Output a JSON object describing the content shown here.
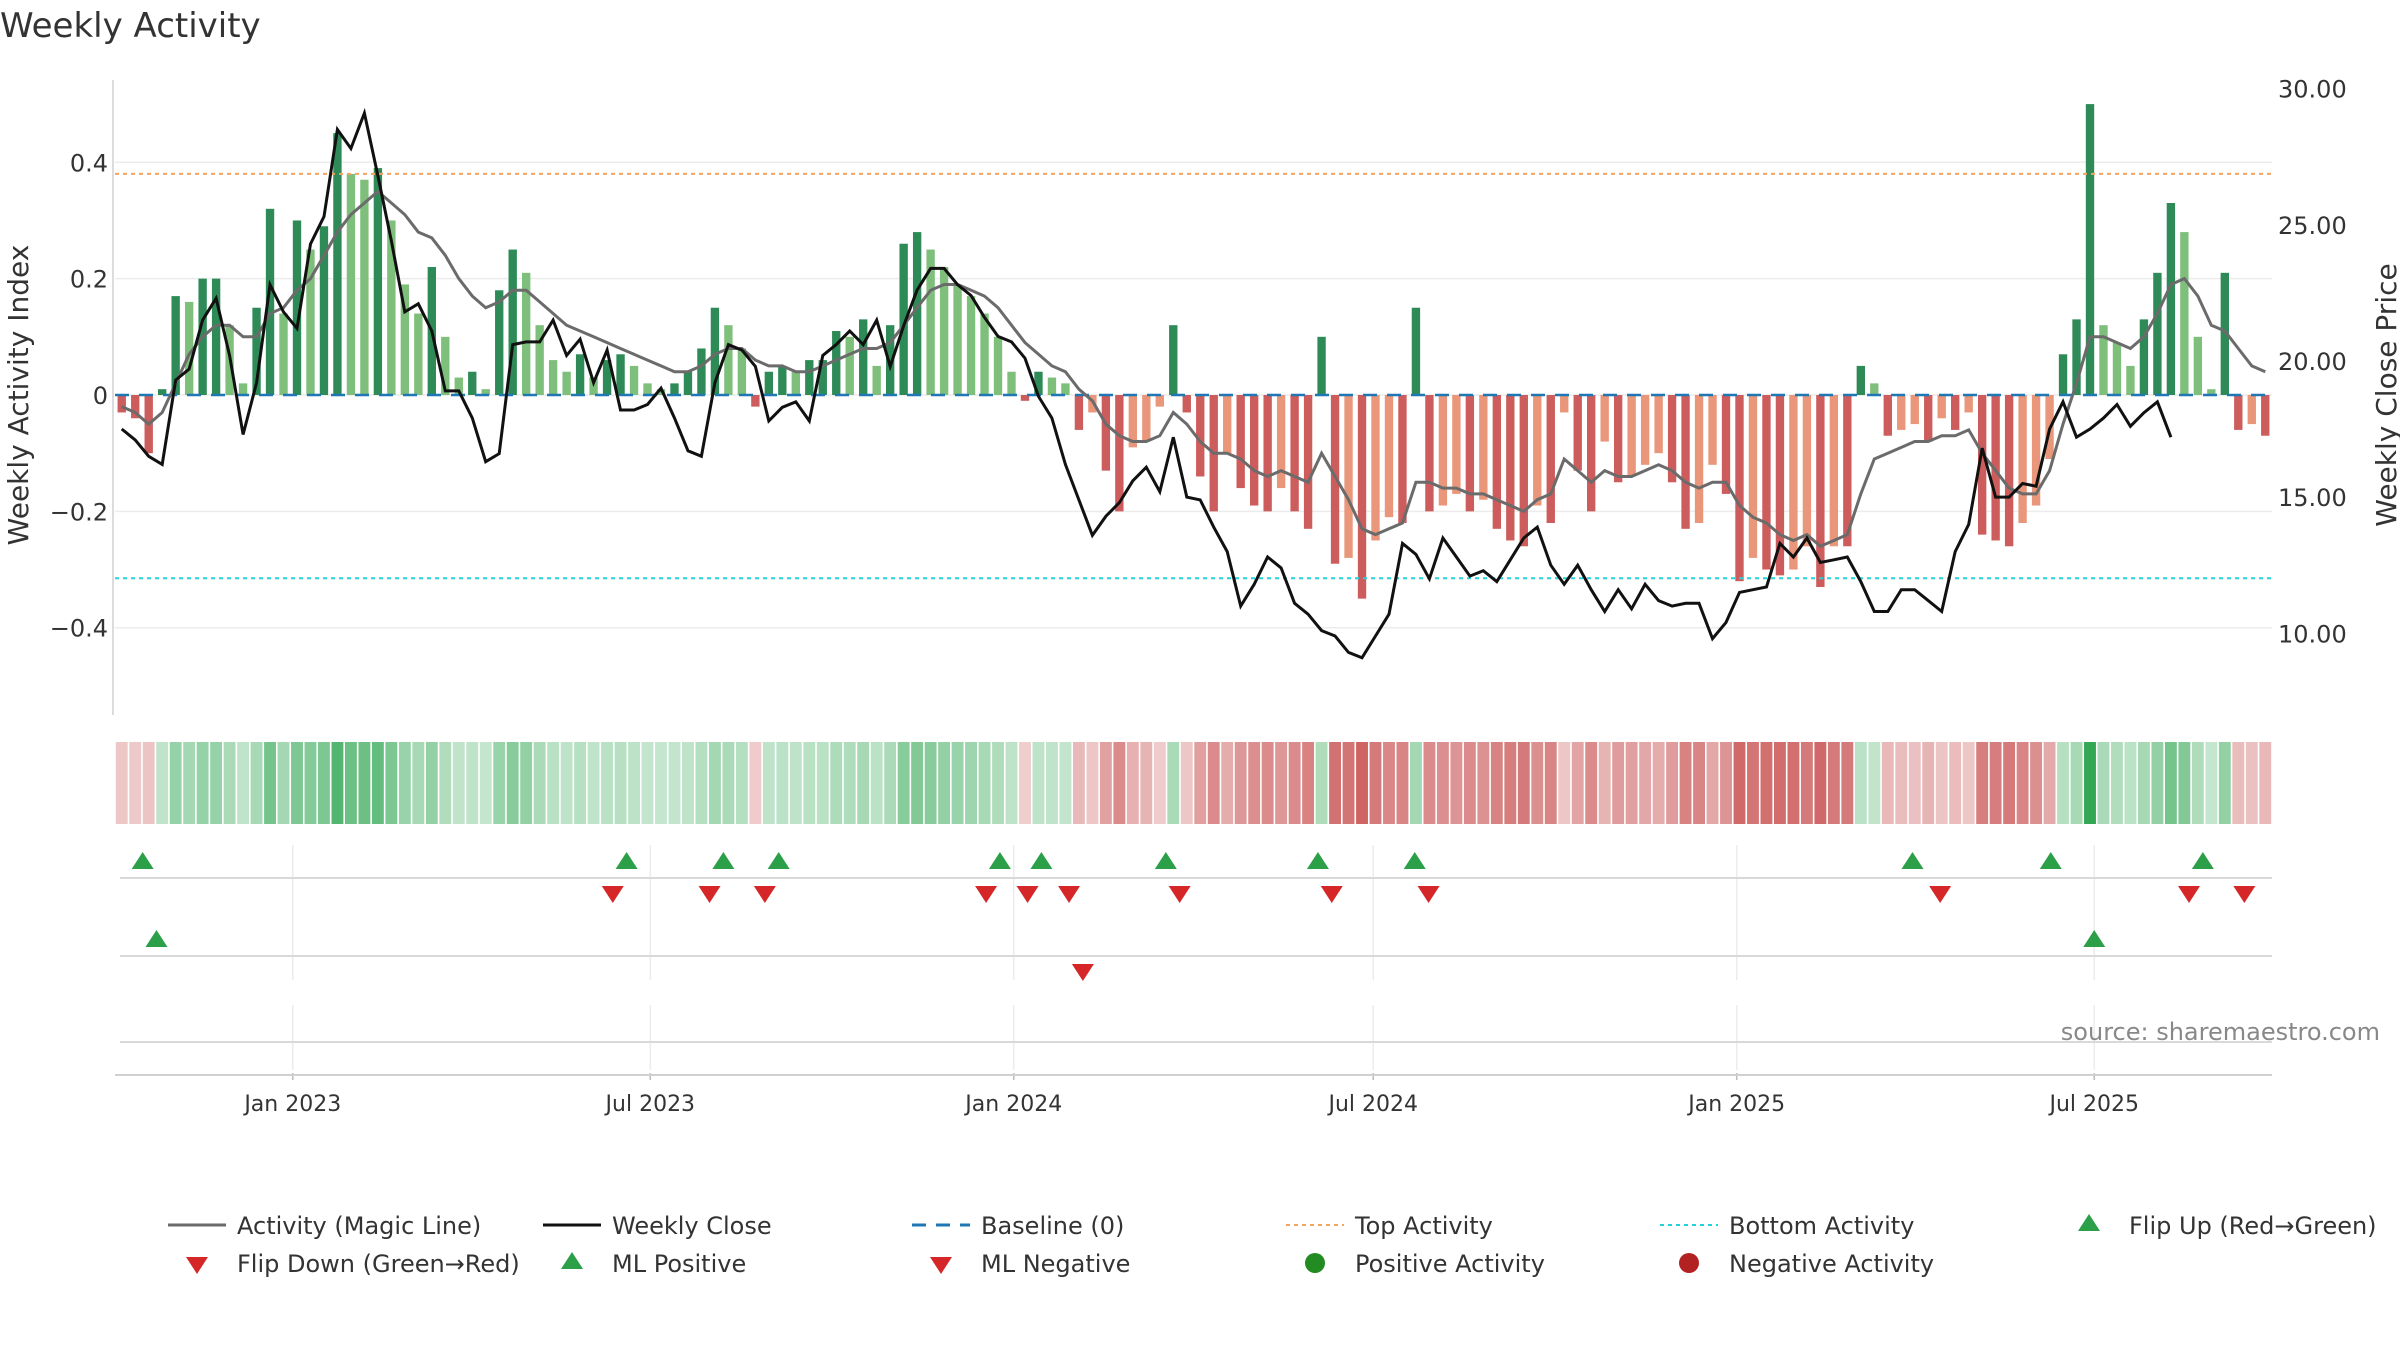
{
  "chart_data": {
    "type": "bar",
    "title": "Weekly Activity",
    "ylabel_left": "Weekly Activity Index",
    "ylabel_right": "Weekly Close Price",
    "source": "source: sharemaestro.com",
    "y_left_range": [
      -0.55,
      0.55
    ],
    "y_left_ticks": [
      0.4,
      0.2,
      0,
      -0.2,
      -0.4
    ],
    "y_left_tick_labels": [
      "0.4",
      "0.2",
      "0",
      "−0.2",
      "−0.4"
    ],
    "y_right_range": [
      7,
      30.5
    ],
    "y_right_ticks": [
      30,
      25,
      20,
      15,
      10
    ],
    "y_right_tick_labels": [
      "30.00",
      "25.00",
      "20.00",
      "15.00",
      "10.00"
    ],
    "top_activity": 0.38,
    "bottom_activity": -0.315,
    "x_start": "2022-10-03",
    "x_end": "2025-09-29",
    "x_ticks": [
      {
        "date": "2023-01-01",
        "label": "Jan 2023"
      },
      {
        "date": "2023-07-01",
        "label": "Jul 2023"
      },
      {
        "date": "2024-01-01",
        "label": "Jan 2024"
      },
      {
        "date": "2024-07-01",
        "label": "Jul 2024"
      },
      {
        "date": "2025-01-01",
        "label": "Jan 2025"
      },
      {
        "date": "2025-07-01",
        "label": "Jul 2025"
      }
    ],
    "activity": [
      -0.03,
      -0.04,
      -0.1,
      0.01,
      0.17,
      0.16,
      0.2,
      0.2,
      0.12,
      0.02,
      0.15,
      0.32,
      0.14,
      0.3,
      0.25,
      0.29,
      0.45,
      0.38,
      0.37,
      0.39,
      0.3,
      0.19,
      0.14,
      0.22,
      0.1,
      0.03,
      0.04,
      0.01,
      0.18,
      0.25,
      0.21,
      0.12,
      0.06,
      0.04,
      0.07,
      0.03,
      0.06,
      0.07,
      0.05,
      0.02,
      0.01,
      0.02,
      0.04,
      0.08,
      0.15,
      0.12,
      0.08,
      -0.02,
      0.04,
      0.05,
      0.04,
      0.06,
      0.06,
      0.11,
      0.1,
      0.13,
      0.05,
      0.12,
      0.26,
      0.28,
      0.25,
      0.22,
      0.19,
      0.17,
      0.14,
      0.1,
      0.04,
      -0.01,
      0.04,
      0.03,
      0.02,
      -0.06,
      -0.03,
      -0.13,
      -0.2,
      -0.09,
      -0.08,
      -0.02,
      0.12,
      -0.03,
      -0.14,
      -0.2,
      -0.1,
      -0.16,
      -0.19,
      -0.2,
      -0.16,
      -0.2,
      -0.23,
      0.1,
      -0.29,
      -0.28,
      -0.35,
      -0.25,
      -0.21,
      -0.22,
      0.15,
      -0.2,
      -0.19,
      -0.17,
      -0.2,
      -0.18,
      -0.23,
      -0.25,
      -0.26,
      -0.19,
      -0.22,
      -0.03,
      -0.13,
      -0.2,
      -0.08,
      -0.15,
      -0.14,
      -0.12,
      -0.1,
      -0.15,
      -0.23,
      -0.22,
      -0.12,
      -0.17,
      -0.32,
      -0.28,
      -0.3,
      -0.31,
      -0.3,
      -0.26,
      -0.33,
      -0.26,
      -0.26,
      0.05,
      0.02,
      -0.07,
      -0.06,
      -0.05,
      -0.08,
      -0.04,
      -0.06,
      -0.03,
      -0.24,
      -0.25,
      -0.26,
      -0.22,
      -0.19,
      -0.11,
      0.07,
      0.13,
      0.5,
      0.12,
      0.09,
      0.05,
      0.13,
      0.21,
      0.33,
      0.28,
      0.1,
      0.01,
      0.21,
      -0.06,
      -0.05,
      -0.07
    ],
    "magic_line": [
      -0.02,
      -0.03,
      -0.05,
      -0.03,
      0.02,
      0.07,
      0.1,
      0.12,
      0.12,
      0.1,
      0.1,
      0.14,
      0.15,
      0.18,
      0.2,
      0.24,
      0.28,
      0.31,
      0.33,
      0.35,
      0.33,
      0.31,
      0.28,
      0.27,
      0.24,
      0.2,
      0.17,
      0.15,
      0.16,
      0.18,
      0.18,
      0.16,
      0.14,
      0.12,
      0.11,
      0.1,
      0.09,
      0.08,
      0.07,
      0.06,
      0.05,
      0.04,
      0.04,
      0.05,
      0.07,
      0.08,
      0.08,
      0.06,
      0.05,
      0.05,
      0.04,
      0.04,
      0.05,
      0.06,
      0.07,
      0.08,
      0.08,
      0.09,
      0.12,
      0.15,
      0.18,
      0.19,
      0.19,
      0.18,
      0.17,
      0.15,
      0.12,
      0.09,
      0.07,
      0.05,
      0.04,
      0.01,
      -0.01,
      -0.05,
      -0.07,
      -0.08,
      -0.08,
      -0.07,
      -0.03,
      -0.05,
      -0.08,
      -0.1,
      -0.1,
      -0.11,
      -0.13,
      -0.14,
      -0.13,
      -0.14,
      -0.15,
      -0.1,
      -0.14,
      -0.18,
      -0.23,
      -0.24,
      -0.23,
      -0.22,
      -0.15,
      -0.15,
      -0.16,
      -0.16,
      -0.17,
      -0.17,
      -0.18,
      -0.19,
      -0.2,
      -0.18,
      -0.17,
      -0.11,
      -0.13,
      -0.15,
      -0.13,
      -0.14,
      -0.14,
      -0.13,
      -0.12,
      -0.13,
      -0.15,
      -0.16,
      -0.15,
      -0.15,
      -0.19,
      -0.21,
      -0.22,
      -0.24,
      -0.25,
      -0.24,
      -0.26,
      -0.25,
      -0.24,
      -0.17,
      -0.11,
      -0.1,
      -0.09,
      -0.08,
      -0.08,
      -0.07,
      -0.07,
      -0.06,
      -0.1,
      -0.13,
      -0.16,
      -0.17,
      -0.17,
      -0.13,
      -0.05,
      0.02,
      0.1,
      0.1,
      0.09,
      0.08,
      0.1,
      0.14,
      0.19,
      0.2,
      0.17,
      0.12,
      0.11,
      0.08,
      0.05,
      0.04
    ],
    "weekly_close": [
      17.5,
      17.1,
      16.5,
      16.2,
      19.3,
      19.7,
      21.5,
      22.3,
      20.2,
      17.3,
      19.2,
      22.8,
      21.8,
      21.2,
      24.3,
      25.3,
      28.5,
      27.8,
      29.1,
      26.8,
      24.4,
      21.8,
      22.1,
      21.1,
      18.9,
      18.9,
      17.9,
      16.3,
      16.6,
      20.6,
      20.7,
      20.7,
      21.5,
      20.2,
      20.8,
      19.2,
      20.4,
      18.2,
      18.2,
      18.4,
      19.0,
      17.9,
      16.7,
      16.5,
      19.2,
      20.6,
      20.4,
      19.8,
      17.8,
      18.3,
      18.5,
      17.8,
      20.2,
      20.6,
      21.1,
      20.6,
      21.5,
      19.8,
      21.3,
      22.6,
      23.4,
      23.4,
      22.8,
      22.4,
      21.6,
      20.9,
      20.7,
      20.1,
      18.7,
      17.9,
      16.2,
      14.9,
      13.6,
      14.3,
      14.8,
      15.6,
      16.1,
      15.2,
      17.2,
      15.0,
      14.9,
      13.9,
      13.0,
      11.0,
      11.8,
      12.8,
      12.4,
      11.1,
      10.7,
      10.1,
      9.9,
      9.3,
      9.1,
      9.9,
      10.7,
      13.3,
      12.9,
      12.0,
      13.5,
      12.8,
      12.1,
      12.3,
      11.9,
      12.7,
      13.5,
      13.9,
      12.5,
      11.8,
      12.5,
      11.6,
      10.8,
      11.6,
      10.9,
      11.8,
      11.2,
      11.0,
      11.1,
      11.1,
      9.8,
      10.4,
      11.5,
      11.6,
      11.7,
      13.3,
      12.8,
      13.5,
      12.6,
      12.7,
      12.8,
      11.9,
      10.8,
      10.8,
      11.6,
      11.6,
      11.2,
      10.8,
      13.0,
      14.0,
      16.8,
      15.0,
      15.0,
      15.5,
      15.4,
      17.5,
      18.5,
      17.2,
      17.5,
      17.9,
      18.4,
      17.6,
      18.1,
      18.5,
      17.2
    ],
    "heat_strip": [
      -0.1,
      -0.08,
      -0.12,
      0.05,
      0.3,
      0.22,
      0.3,
      0.3,
      0.18,
      0.05,
      0.2,
      0.5,
      0.22,
      0.45,
      0.4,
      0.45,
      0.7,
      0.55,
      0.55,
      0.6,
      0.45,
      0.28,
      0.2,
      0.32,
      0.14,
      0.05,
      0.06,
      0.02,
      0.28,
      0.38,
      0.32,
      0.18,
      0.09,
      0.06,
      0.1,
      0.05,
      0.09,
      0.1,
      0.07,
      0.03,
      0.02,
      0.03,
      0.06,
      0.12,
      0.22,
      0.18,
      0.12,
      -0.06,
      0.06,
      0.08,
      0.06,
      0.09,
      0.09,
      0.16,
      0.15,
      0.2,
      0.08,
      0.18,
      0.38,
      0.42,
      0.38,
      0.32,
      0.28,
      0.25,
      0.2,
      0.15,
      0.06,
      -0.04,
      0.06,
      0.05,
      0.03,
      -0.2,
      -0.1,
      -0.38,
      -0.55,
      -0.26,
      -0.24,
      -0.06,
      0.18,
      -0.1,
      -0.4,
      -0.55,
      -0.3,
      -0.46,
      -0.52,
      -0.55,
      -0.46,
      -0.55,
      -0.62,
      0.15,
      -0.75,
      -0.72,
      -0.85,
      -0.68,
      -0.58,
      -0.6,
      0.22,
      -0.55,
      -0.52,
      -0.48,
      -0.55,
      -0.5,
      -0.62,
      -0.66,
      -0.68,
      -0.52,
      -0.6,
      -0.1,
      -0.36,
      -0.55,
      -0.24,
      -0.42,
      -0.4,
      -0.34,
      -0.3,
      -0.42,
      -0.62,
      -0.6,
      -0.34,
      -0.48,
      -0.8,
      -0.72,
      -0.76,
      -0.78,
      -0.76,
      -0.68,
      -0.82,
      -0.68,
      -0.68,
      0.08,
      0.04,
      -0.2,
      -0.18,
      -0.15,
      -0.24,
      -0.12,
      -0.18,
      -0.1,
      -0.64,
      -0.66,
      -0.68,
      -0.6,
      -0.52,
      -0.32,
      0.1,
      0.2,
      0.9,
      0.18,
      0.14,
      0.08,
      0.2,
      0.32,
      0.5,
      0.42,
      0.15,
      0.02,
      0.32,
      -0.18,
      -0.15,
      -0.2
    ],
    "flip_up_dates": [
      "2022-10-17",
      "2023-06-19",
      "2023-08-07",
      "2023-09-04",
      "2023-12-25",
      "2024-01-15",
      "2024-03-18",
      "2024-06-03",
      "2024-07-22",
      "2025-03-31",
      "2025-06-09",
      "2025-08-25"
    ],
    "flip_down_dates": [
      "2023-06-12",
      "2023-07-31",
      "2023-08-28",
      "2023-12-18",
      "2024-01-08",
      "2024-01-29",
      "2024-03-25",
      "2024-06-10",
      "2024-07-29",
      "2025-04-14",
      "2025-08-18",
      "2025-09-15"
    ],
    "ml_positive_dates": [
      "2022-10-24",
      "2025-07-01"
    ],
    "ml_negative_dates": [
      "2024-02-05"
    ],
    "colors": {
      "pos_dark": "#2e8b57",
      "pos_light": "#7ebf7b",
      "neg_dark": "#cd5c5c",
      "neg_light": "#e9967a",
      "magic_line": "#6b6b6b",
      "close": "#111111",
      "baseline": "#1f77b4",
      "top": "#f4a460",
      "bottom": "#22d3d8",
      "marker_up": "#2ca048",
      "marker_down": "#d62728",
      "positive_activity": "#228b22",
      "negative_activity": "#b22222"
    },
    "legend": [
      {
        "label": "Activity (Magic Line)",
        "kind": "line",
        "color": "#6b6b6b"
      },
      {
        "label": "Weekly Close",
        "kind": "line",
        "color": "#111111"
      },
      {
        "label": "Baseline (0)",
        "kind": "dash",
        "color": "#1f77b4"
      },
      {
        "label": "Top Activity",
        "kind": "dot",
        "color": "#f4a460"
      },
      {
        "label": "Bottom Activity",
        "kind": "dot",
        "color": "#22d3d8"
      },
      {
        "label": "Flip Up (Red→Green)",
        "kind": "up",
        "color": "#2ca048"
      },
      {
        "label": "Flip Down (Green→Red)",
        "kind": "down",
        "color": "#d62728"
      },
      {
        "label": "ML Positive",
        "kind": "up",
        "color": "#2ca048"
      },
      {
        "label": "ML Negative",
        "kind": "down",
        "color": "#d62728"
      },
      {
        "label": "Positive Activity",
        "kind": "circle",
        "color": "#228b22"
      },
      {
        "label": "Negative Activity",
        "kind": "circle",
        "color": "#b22222"
      }
    ]
  }
}
